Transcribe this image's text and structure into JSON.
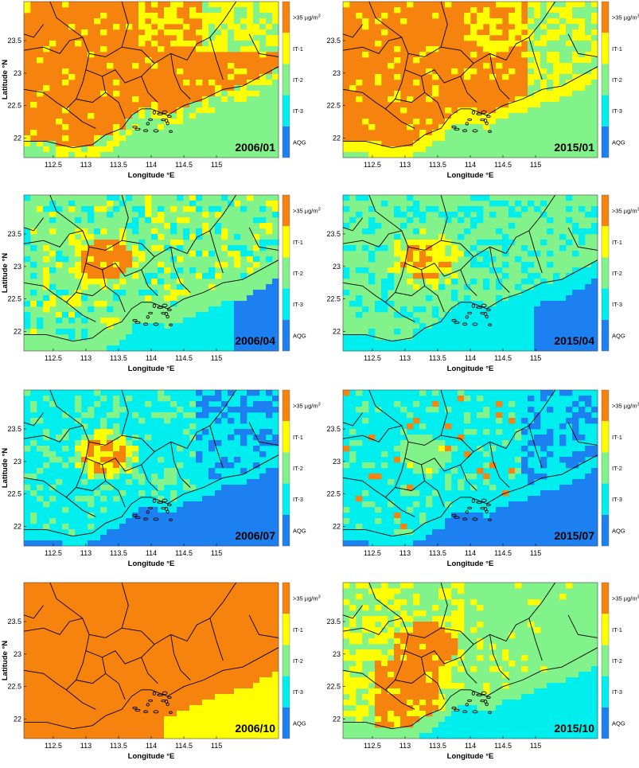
{
  "colors": {
    "gt35": "#f7830f",
    "it1": "#ffff00",
    "it2": "#82f28a",
    "it3": "#00eeee",
    "aqg": "#1c80f0",
    "boundary": "#000000"
  },
  "legend": {
    "levels": [
      {
        "key": "gt35",
        "label": ">35 µg/m",
        "sup": "3"
      },
      {
        "key": "it1",
        "label": "IT-1"
      },
      {
        "key": "it2",
        "label": "IT-2"
      },
      {
        "key": "it3",
        "label": "IT-3"
      },
      {
        "key": "aqg",
        "label": "AQG"
      }
    ]
  },
  "axes": {
    "xlabel": "Longitude °E",
    "ylabel": "Latitude °N",
    "xticks": [
      "112.5",
      "113",
      "113.5",
      "114",
      "114.5",
      "115"
    ],
    "yticks": [
      "23.5",
      "23",
      "22.5",
      "22"
    ]
  },
  "panels": [
    {
      "id": "2006-01",
      "label": "2006/01",
      "dominant": "gt35",
      "show_xlabel": true,
      "show_ylabel": true
    },
    {
      "id": "2015-01",
      "label": "2015/01",
      "dominant": "gt35",
      "show_xlabel": true,
      "show_ylabel": false
    },
    {
      "id": "2006-04",
      "label": "2006/04",
      "dominant": "it2",
      "show_xlabel": true,
      "show_ylabel": true
    },
    {
      "id": "2015-04",
      "label": "2015/04",
      "dominant": "it2",
      "show_xlabel": true,
      "show_ylabel": false
    },
    {
      "id": "2006-07",
      "label": "2006/07",
      "dominant": "it3",
      "show_xlabel": true,
      "show_ylabel": true
    },
    {
      "id": "2015-07",
      "label": "2015/07",
      "dominant": "it3",
      "show_xlabel": true,
      "show_ylabel": false
    },
    {
      "id": "2006-10",
      "label": "2006/10",
      "dominant": "gt35",
      "show_xlabel": true,
      "show_ylabel": true
    },
    {
      "id": "2015-10",
      "label": "2015/10",
      "dominant": "it2",
      "show_xlabel": true,
      "show_ylabel": false
    }
  ]
}
